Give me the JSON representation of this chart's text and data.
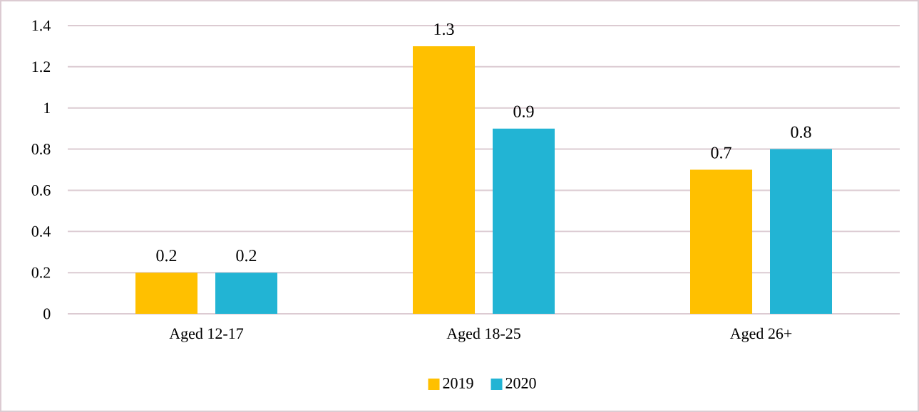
{
  "chart_data": {
    "type": "bar",
    "categories": [
      "Aged 12-17",
      "Aged 18-25",
      "Aged 26+"
    ],
    "series": [
      {
        "name": "2019",
        "color": "#ffc000",
        "values": [
          0.2,
          1.3,
          0.7
        ]
      },
      {
        "name": "2020",
        "color": "#22b4d4",
        "values": [
          0.2,
          0.9,
          0.8
        ]
      }
    ],
    "ylim": [
      0,
      1.4
    ],
    "yticks": [
      0,
      0.2,
      0.4,
      0.6,
      0.8,
      1,
      1.2,
      1.4
    ],
    "grid": "y",
    "legend": "bottom",
    "data_labels": true
  }
}
